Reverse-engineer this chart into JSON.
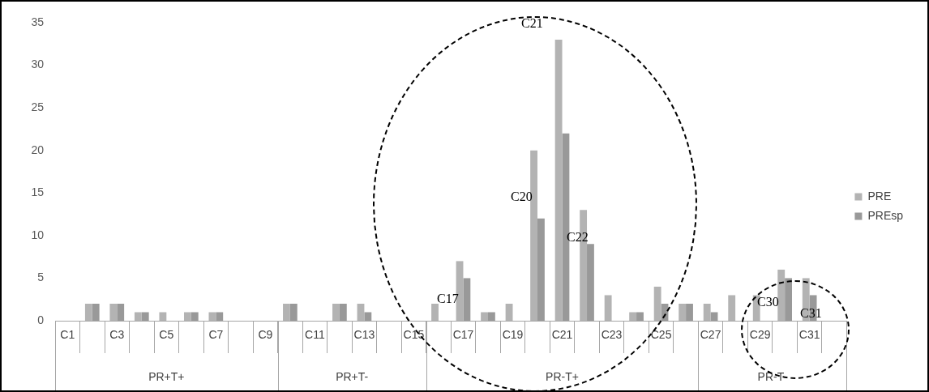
{
  "chart_data": {
    "type": "bar",
    "categories": [
      "C1",
      null,
      "C3",
      null,
      "C5",
      null,
      "C7",
      null,
      "C9",
      null,
      "C11",
      null,
      "C13",
      null,
      "C15",
      null,
      "C17",
      null,
      "C19",
      null,
      "C21",
      null,
      "C23",
      null,
      "C25",
      null,
      "C27",
      null,
      "C29",
      null,
      "C31",
      null
    ],
    "series": [
      {
        "name": "PRE",
        "color": "#b3b3b3",
        "values": [
          0,
          2,
          2,
          1,
          1,
          1,
          1,
          0,
          0,
          2,
          0,
          2,
          2,
          0,
          0,
          2,
          7,
          1,
          2,
          20,
          33,
          13,
          3,
          1,
          4,
          2,
          2,
          3,
          3,
          6,
          5,
          0
        ]
      },
      {
        "name": "PREsp",
        "color": "#999999",
        "values": [
          0,
          2,
          2,
          1,
          0,
          1,
          1,
          0,
          0,
          2,
          0,
          2,
          1,
          0,
          0,
          0,
          5,
          1,
          0,
          12,
          22,
          9,
          0,
          1,
          2,
          2,
          1,
          0,
          0,
          5,
          3,
          0
        ]
      }
    ],
    "ylim": [
      0,
      35
    ],
    "yticks": [
      0,
      5,
      10,
      15,
      20,
      25,
      30,
      35
    ],
    "legend": "right",
    "annotations": [
      "C17",
      "C20",
      "C21",
      "C22",
      "C30",
      "C31",
      "PR+T+",
      "PR+T-",
      "PR-T+",
      "PR-T-"
    ]
  }
}
